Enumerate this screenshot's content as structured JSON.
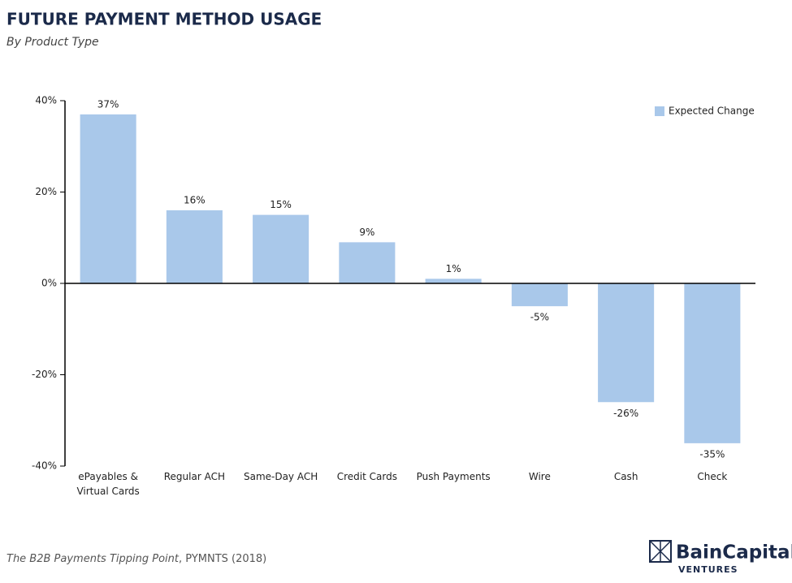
{
  "chart_data": {
    "type": "bar",
    "title": "FUTURE PAYMENT METHOD USAGE",
    "subtitle": "By Product Type",
    "categories": [
      "ePayables & Virtual Cards",
      "Regular ACH",
      "Same-Day ACH",
      "Credit Cards",
      "Push Payments",
      "Wire",
      "Cash",
      "Check"
    ],
    "series": [
      {
        "name": "Expected Change",
        "color": "#a9c8ea",
        "values": [
          37,
          16,
          15,
          9,
          1,
          -5,
          -26,
          -35
        ],
        "value_labels": [
          "37%",
          "16%",
          "15%",
          "9%",
          "1%",
          "-5%",
          "-26%",
          "-35%"
        ]
      }
    ],
    "ylim": [
      -40,
      40
    ],
    "yticks": [
      {
        "value": 40,
        "label": "40%"
      },
      {
        "value": 20,
        "label": "20%"
      },
      {
        "value": 0,
        "label": "0%"
      },
      {
        "value": -20,
        "label": "-20%"
      },
      {
        "value": -40,
        "label": "-40%"
      }
    ],
    "legend": "top-right",
    "grid": false
  },
  "source": {
    "title": "The B2B Payments Tipping Point",
    "rest": ", PYMNTS (2018)"
  },
  "logo": {
    "name": "BainCapital",
    "sub": "VENTURES"
  }
}
